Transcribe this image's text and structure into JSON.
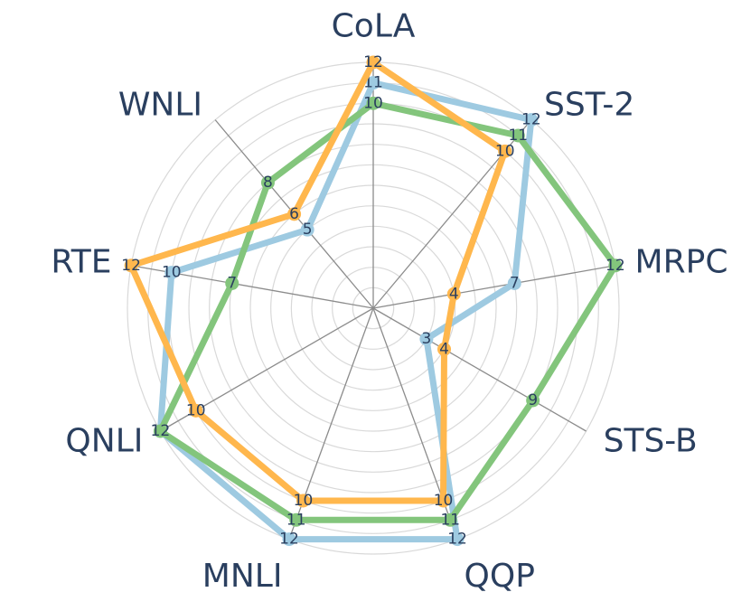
{
  "chart_data": {
    "type": "radar",
    "categories": [
      "CoLA",
      "SST-2",
      "MRPC",
      "STS-B",
      "QQP",
      "MNLI",
      "QNLI",
      "RTE",
      "WNLI"
    ],
    "rlim": [
      0,
      12
    ],
    "grid": true,
    "series": [
      {
        "color": "#9ecae1",
        "values": [
          11,
          12,
          7,
          3,
          12,
          12,
          12,
          10,
          5
        ],
        "labels": [
          "11",
          "12",
          "7",
          "3",
          "12",
          "12",
          "12",
          "10",
          "5"
        ]
      },
      {
        "color": "#83c57c",
        "values": [
          10,
          11,
          12,
          9,
          11,
          11,
          12,
          7,
          8
        ],
        "labels": [
          "10",
          "11",
          "12",
          "9",
          "11",
          "11",
          "12",
          "7",
          "8"
        ]
      },
      {
        "color": "#ffb74d",
        "values": [
          12,
          10,
          4,
          4,
          10,
          10,
          10,
          12,
          6
        ],
        "labels": [
          "12",
          "10",
          "4",
          "4",
          "10",
          "10",
          "10",
          "12",
          "6"
        ]
      }
    ]
  }
}
